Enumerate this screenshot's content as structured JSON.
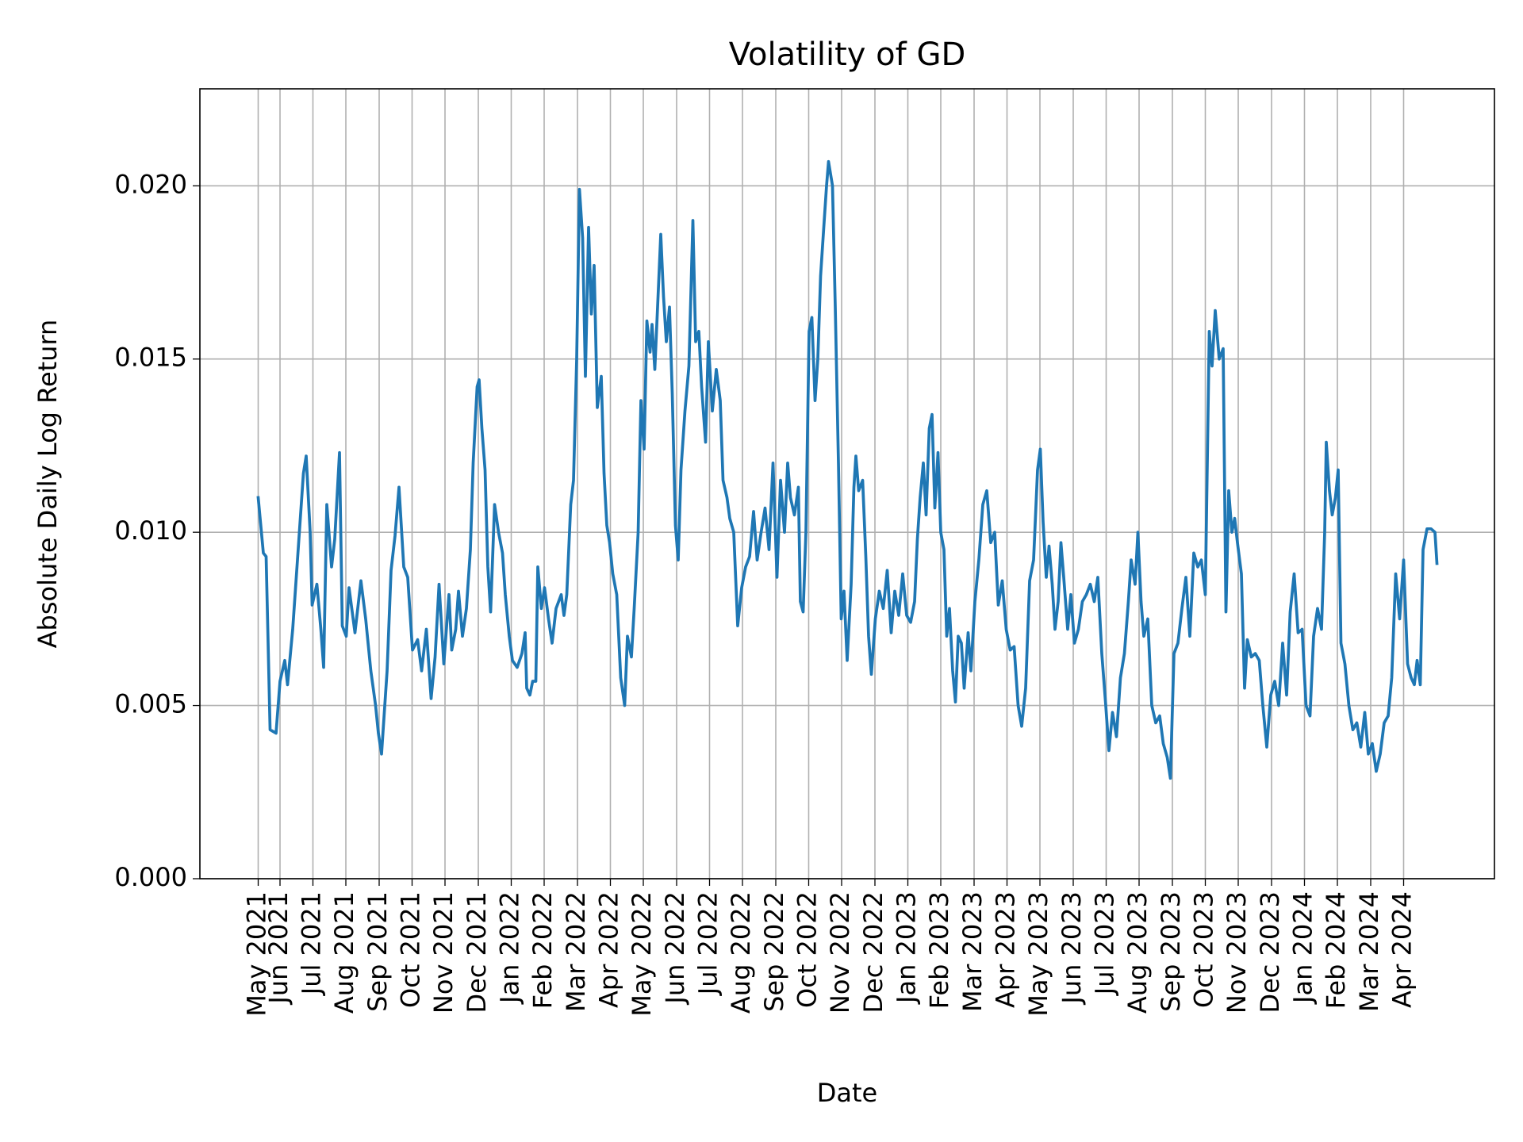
{
  "chart_data": {
    "type": "line",
    "title": "Volatility of GD",
    "x_label": "Date",
    "y_label": "Absolute Daily Log Return",
    "color": "#1f77b4",
    "grid": true,
    "xlim": [
      2021.215,
      2024.479
    ],
    "ylim": [
      0,
      0.0228
    ],
    "xticks": [
      {
        "value": 2021.362,
        "label": "May 2021"
      },
      {
        "value": 2021.417,
        "label": "Jun 2021"
      },
      {
        "value": 2021.5,
        "label": "Jul 2021"
      },
      {
        "value": 2021.583,
        "label": "Aug 2021"
      },
      {
        "value": 2021.667,
        "label": "Sep 2021"
      },
      {
        "value": 2021.75,
        "label": "Oct 2021"
      },
      {
        "value": 2021.833,
        "label": "Nov 2021"
      },
      {
        "value": 2021.917,
        "label": "Dec 2021"
      },
      {
        "value": 2022,
        "label": "Jan 2022"
      },
      {
        "value": 2022.083,
        "label": "Feb 2022"
      },
      {
        "value": 2022.167,
        "label": "Mar 2022"
      },
      {
        "value": 2022.25,
        "label": "Apr 2022"
      },
      {
        "value": 2022.333,
        "label": "May 2022"
      },
      {
        "value": 2022.417,
        "label": "Jun 2022"
      },
      {
        "value": 2022.5,
        "label": "Jul 2022"
      },
      {
        "value": 2022.583,
        "label": "Aug 2022"
      },
      {
        "value": 2022.667,
        "label": "Sep 2022"
      },
      {
        "value": 2022.75,
        "label": "Oct 2022"
      },
      {
        "value": 2022.833,
        "label": "Nov 2022"
      },
      {
        "value": 2022.917,
        "label": "Dec 2022"
      },
      {
        "value": 2023,
        "label": "Jan 2023"
      },
      {
        "value": 2023.083,
        "label": "Feb 2023"
      },
      {
        "value": 2023.167,
        "label": "Mar 2023"
      },
      {
        "value": 2023.25,
        "label": "Apr 2023"
      },
      {
        "value": 2023.333,
        "label": "May 2023"
      },
      {
        "value": 2023.417,
        "label": "Jun 2023"
      },
      {
        "value": 2023.5,
        "label": "Jul 2023"
      },
      {
        "value": 2023.583,
        "label": "Aug 2023"
      },
      {
        "value": 2023.667,
        "label": "Sep 2023"
      },
      {
        "value": 2023.75,
        "label": "Oct 2023"
      },
      {
        "value": 2023.833,
        "label": "Nov 2023"
      },
      {
        "value": 2023.917,
        "label": "Dec 2023"
      },
      {
        "value": 2024,
        "label": "Jan 2024"
      },
      {
        "value": 2024.083,
        "label": "Feb 2024"
      },
      {
        "value": 2024.167,
        "label": "Mar 2024"
      },
      {
        "value": 2024.25,
        "label": "Apr 2024"
      }
    ],
    "yticks": [
      {
        "value": 0,
        "label": "0.000"
      },
      {
        "value": 0.005,
        "label": "0.005"
      },
      {
        "value": 0.01,
        "label": "0.010"
      },
      {
        "value": 0.015,
        "label": "0.015"
      },
      {
        "value": 0.02,
        "label": "0.020"
      }
    ],
    "x": [
      2021.362,
      2021.375,
      2021.382,
      2021.392,
      2021.407,
      2021.417,
      2021.429,
      2021.436,
      2021.449,
      2021.461,
      2021.476,
      2021.483,
      2021.493,
      2021.498,
      2021.51,
      2021.52,
      2021.527,
      2021.535,
      2021.547,
      2021.555,
      2021.567,
      2021.574,
      2021.584,
      2021.591,
      2021.606,
      2021.621,
      2021.633,
      2021.646,
      2021.658,
      2021.665,
      2021.673,
      2021.687,
      2021.697,
      2021.707,
      2021.717,
      2021.729,
      2021.739,
      2021.751,
      2021.764,
      2021.774,
      2021.786,
      2021.798,
      2021.808,
      2021.818,
      2021.83,
      2021.843,
      2021.85,
      2021.86,
      2021.867,
      2021.877,
      2021.887,
      2021.897,
      2021.904,
      2021.914,
      2021.919,
      2021.926,
      2021.934,
      2021.941,
      2021.948,
      2021.958,
      2021.968,
      2021.978,
      2021.985,
      2021.995,
      2022.003,
      2022.015,
      2022.027,
      2022.035,
      2022.039,
      2022.047,
      2022.054,
      2022.062,
      2022.067,
      2022.076,
      2022.084,
      2022.094,
      2022.103,
      2022.113,
      2022.126,
      2022.133,
      2022.14,
      2022.15,
      2022.157,
      2022.165,
      2022.172,
      2022.18,
      2022.187,
      2022.195,
      2022.202,
      2022.209,
      2022.217,
      2022.227,
      2022.234,
      2022.241,
      2022.248,
      2022.256,
      2022.266,
      2022.276,
      2022.286,
      2022.293,
      2022.303,
      2022.31,
      2022.32,
      2022.327,
      2022.335,
      2022.342,
      2022.35,
      2022.355,
      2022.362,
      2022.369,
      2022.377,
      2022.384,
      2022.391,
      2022.399,
      2022.406,
      2022.414,
      2022.421,
      2022.428,
      2022.438,
      2022.448,
      2022.458,
      2022.465,
      2022.473,
      2022.48,
      2022.49,
      2022.497,
      2022.507,
      2022.517,
      2022.527,
      2022.534,
      2022.544,
      2022.551,
      2022.561,
      2022.571,
      2022.581,
      2022.591,
      2022.601,
      2022.611,
      2022.62,
      2022.63,
      2022.64,
      2022.65,
      2022.66,
      2022.67,
      2022.679,
      2022.689,
      2022.697,
      2022.704,
      2022.714,
      2022.724,
      2022.729,
      2022.736,
      2022.743,
      2022.751,
      2022.758,
      2022.766,
      2022.773,
      2022.78,
      2022.788,
      2022.795,
      2022.8,
      2022.81,
      2022.817,
      2022.825,
      2022.832,
      2022.839,
      2022.847,
      2022.857,
      2022.864,
      2022.869,
      2022.876,
      2022.886,
      2022.894,
      2022.901,
      2022.908,
      2022.918,
      2022.928,
      2022.938,
      2022.948,
      2022.958,
      2022.967,
      2022.977,
      2022.987,
      2022.997,
      2023.007,
      2023.017,
      2023.024,
      2023.031,
      2023.039,
      2023.046,
      2023.054,
      2023.061,
      2023.068,
      2023.076,
      2023.083,
      2023.091,
      2023.098,
      2023.105,
      2023.113,
      2023.12,
      2023.127,
      2023.135,
      2023.142,
      2023.152,
      2023.159,
      2023.169,
      2023.179,
      2023.189,
      2023.199,
      2023.209,
      2023.219,
      2023.228,
      2023.238,
      2023.248,
      2023.258,
      2023.268,
      2023.278,
      2023.287,
      2023.297,
      2023.307,
      2023.317,
      2023.327,
      2023.334,
      2023.341,
      2023.349,
      2023.356,
      2023.364,
      2023.371,
      2023.379,
      2023.386,
      2023.393,
      2023.403,
      2023.411,
      2023.42,
      2023.43,
      2023.44,
      2023.45,
      2023.46,
      2023.47,
      2023.479,
      2023.489,
      2023.499,
      2023.507,
      2023.516,
      2023.526,
      2023.536,
      2023.546,
      2023.556,
      2023.563,
      2023.573,
      2023.58,
      2023.588,
      2023.595,
      2023.605,
      2023.615,
      2023.625,
      2023.635,
      2023.644,
      2023.654,
      2023.662,
      2023.671,
      2023.681,
      2023.691,
      2023.701,
      2023.711,
      2023.721,
      2023.731,
      2023.74,
      2023.75,
      2023.76,
      2023.767,
      2023.775,
      2023.785,
      2023.795,
      2023.802,
      2023.809,
      2023.817,
      2023.824,
      2023.831,
      2023.841,
      2023.849,
      2023.856,
      2023.866,
      2023.876,
      2023.886,
      2023.895,
      2023.905,
      2023.915,
      2023.925,
      2023.935,
      2023.945,
      2023.955,
      2023.964,
      2023.974,
      2023.984,
      2023.994,
      2024.004,
      2024.014,
      2024.023,
      2024.033,
      2024.043,
      2024.051,
      2024.055,
      2024.063,
      2024.07,
      2024.078,
      2024.085,
      2024.092,
      2024.102,
      2024.112,
      2024.122,
      2024.132,
      2024.142,
      2024.152,
      2024.161,
      2024.171,
      2024.181,
      2024.191,
      2024.201,
      2024.211,
      2024.22,
      2024.23,
      2024.24,
      2024.25,
      2024.26,
      2024.269,
      2024.277,
      2024.284,
      2024.292,
      2024.299,
      2024.309,
      2024.319,
      2024.329,
      2024.334
    ],
    "values": [
      0.011,
      0.0094,
      0.0093,
      0.0043,
      0.0042,
      0.0057,
      0.0063,
      0.0056,
      0.0072,
      0.0092,
      0.0117,
      0.0122,
      0.01,
      0.0079,
      0.0085,
      0.0072,
      0.0061,
      0.0108,
      0.009,
      0.0098,
      0.0123,
      0.0073,
      0.007,
      0.0084,
      0.0071,
      0.0086,
      0.0075,
      0.006,
      0.005,
      0.0042,
      0.0036,
      0.006,
      0.0089,
      0.0099,
      0.0113,
      0.009,
      0.0087,
      0.0066,
      0.0069,
      0.006,
      0.0072,
      0.0052,
      0.0064,
      0.0085,
      0.0062,
      0.0082,
      0.0066,
      0.0072,
      0.0083,
      0.007,
      0.0078,
      0.0095,
      0.012,
      0.0142,
      0.0144,
      0.013,
      0.0118,
      0.009,
      0.0077,
      0.0108,
      0.01,
      0.0094,
      0.0082,
      0.007,
      0.0063,
      0.0061,
      0.0065,
      0.0071,
      0.0055,
      0.0053,
      0.0057,
      0.0057,
      0.009,
      0.0078,
      0.0084,
      0.0075,
      0.0068,
      0.0078,
      0.0082,
      0.0076,
      0.0082,
      0.0108,
      0.0115,
      0.015,
      0.0199,
      0.0185,
      0.0145,
      0.0188,
      0.0163,
      0.0177,
      0.0136,
      0.0145,
      0.0117,
      0.0102,
      0.0097,
      0.0088,
      0.0082,
      0.0058,
      0.005,
      0.007,
      0.0064,
      0.0078,
      0.01,
      0.0138,
      0.0124,
      0.0161,
      0.0152,
      0.016,
      0.0147,
      0.0165,
      0.0186,
      0.0168,
      0.0155,
      0.0165,
      0.014,
      0.0102,
      0.0092,
      0.0118,
      0.0135,
      0.0148,
      0.019,
      0.0155,
      0.0158,
      0.0142,
      0.0126,
      0.0155,
      0.0135,
      0.0147,
      0.0138,
      0.0115,
      0.011,
      0.0104,
      0.01,
      0.0073,
      0.0084,
      0.009,
      0.0093,
      0.0106,
      0.0092,
      0.01,
      0.0107,
      0.0095,
      0.012,
      0.0087,
      0.0115,
      0.01,
      0.012,
      0.011,
      0.0105,
      0.0113,
      0.008,
      0.0077,
      0.01,
      0.0158,
      0.0162,
      0.0138,
      0.015,
      0.0174,
      0.0188,
      0.02,
      0.0207,
      0.02,
      0.0165,
      0.012,
      0.0075,
      0.0083,
      0.0063,
      0.0085,
      0.0113,
      0.0122,
      0.0112,
      0.0115,
      0.0093,
      0.007,
      0.0059,
      0.0075,
      0.0083,
      0.0078,
      0.0089,
      0.0071,
      0.0083,
      0.0076,
      0.0088,
      0.0076,
      0.0074,
      0.008,
      0.0098,
      0.011,
      0.012,
      0.0105,
      0.013,
      0.0134,
      0.0107,
      0.0123,
      0.01,
      0.0095,
      0.007,
      0.0078,
      0.006,
      0.0051,
      0.007,
      0.0068,
      0.0055,
      0.0071,
      0.006,
      0.008,
      0.0092,
      0.0108,
      0.0112,
      0.0097,
      0.01,
      0.0079,
      0.0086,
      0.0072,
      0.0066,
      0.0067,
      0.005,
      0.0044,
      0.0055,
      0.0086,
      0.0092,
      0.0118,
      0.0124,
      0.0103,
      0.0087,
      0.0096,
      0.0085,
      0.0072,
      0.008,
      0.0097,
      0.0087,
      0.0072,
      0.0082,
      0.0068,
      0.0072,
      0.008,
      0.0082,
      0.0085,
      0.008,
      0.0087,
      0.0065,
      0.005,
      0.0037,
      0.0048,
      0.0041,
      0.0058,
      0.0065,
      0.008,
      0.0092,
      0.0085,
      0.01,
      0.008,
      0.007,
      0.0075,
      0.005,
      0.0045,
      0.0047,
      0.0039,
      0.0035,
      0.0029,
      0.0065,
      0.0068,
      0.0078,
      0.0087,
      0.007,
      0.0094,
      0.009,
      0.0092,
      0.0082,
      0.0158,
      0.0148,
      0.0164,
      0.015,
      0.0153,
      0.0077,
      0.0112,
      0.01,
      0.0104,
      0.0097,
      0.0088,
      0.0055,
      0.0069,
      0.0064,
      0.0065,
      0.0063,
      0.005,
      0.0038,
      0.0053,
      0.0057,
      0.005,
      0.0068,
      0.0053,
      0.0077,
      0.0088,
      0.0071,
      0.0072,
      0.005,
      0.0047,
      0.007,
      0.0078,
      0.0072,
      0.01,
      0.0126,
      0.0112,
      0.0105,
      0.011,
      0.0118,
      0.0068,
      0.0062,
      0.005,
      0.0043,
      0.0045,
      0.0038,
      0.0048,
      0.0036,
      0.0039,
      0.0031,
      0.0036,
      0.0045,
      0.0047,
      0.0058,
      0.0088,
      0.0075,
      0.0092,
      0.0062,
      0.0058,
      0.0056,
      0.0063,
      0.0056,
      0.0095,
      0.0101,
      0.0101,
      0.01,
      0.0091
    ]
  }
}
